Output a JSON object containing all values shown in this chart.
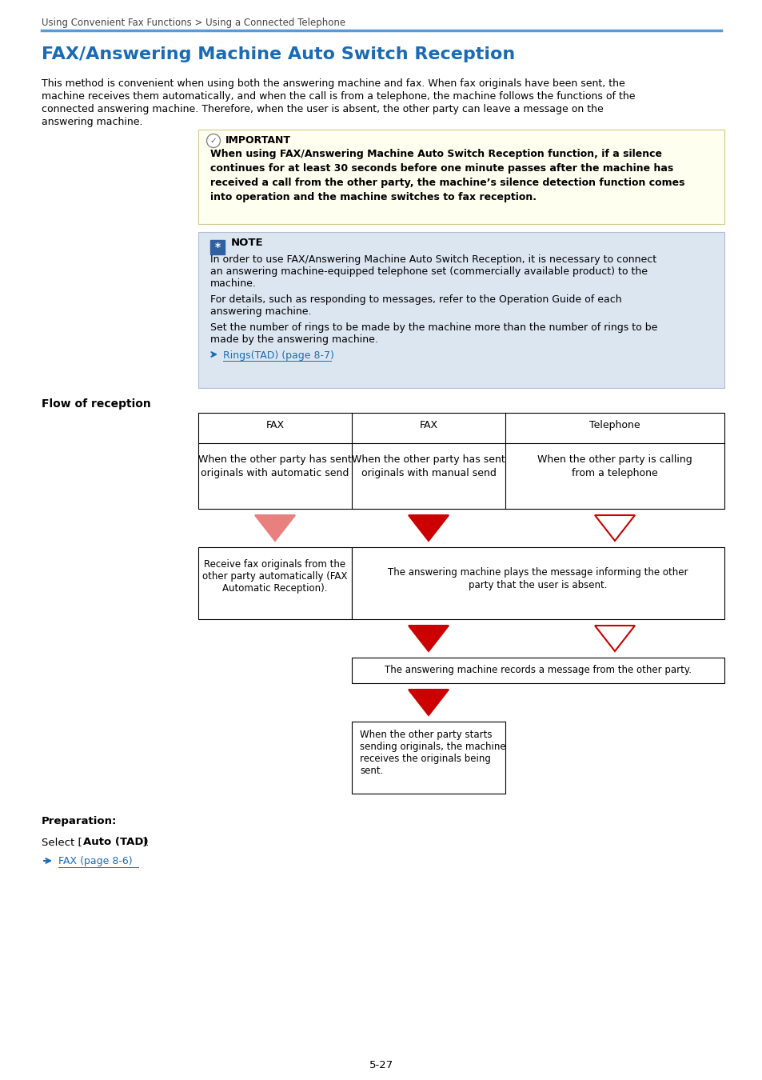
{
  "breadcrumb": "Using Convenient Fax Functions > Using a Connected Telephone",
  "title": "FAX/Answering Machine Auto Switch Reception",
  "intro_text": "This method is convenient when using both the answering machine and fax. When fax originals have been sent, the\nmachine receives them automatically, and when the call is from a telephone, the machine follows the functions of the\nconnected answering machine. Therefore, when the user is absent, the other party can leave a message on the\nanswering machine.",
  "important_title": "IMPORTANT",
  "important_text": "When using FAX/Answering Machine Auto Switch Reception function, if a silence\ncontinues for at least 30 seconds before one minute passes after the machine has\nreceived a call from the other party, the machine’s silence detection function comes\ninto operation and the machine switches to fax reception.",
  "note_title": "NOTE",
  "note_text1": "In order to use FAX/Answering Machine Auto Switch Reception, it is necessary to connect\nan answering machine-equipped telephone set (commercially available product) to the\nmachine.",
  "note_text2": "For details, such as responding to messages, refer to the Operation Guide of each\nanswering machine.",
  "note_text3": "Set the number of rings to be made by the machine more than the number of rings to be\nmade by the answering machine.",
  "note_link": "Rings(TAD) (page 8-7)",
  "flow_title": "Flow of reception",
  "table_headers": [
    "FAX",
    "FAX",
    "Telephone"
  ],
  "table_row1": [
    "When the other party has sent\noriginals with automatic send",
    "When the other party has sent\noriginals with manual send",
    "When the other party is calling\nfrom a telephone"
  ],
  "box1_text": "Receive fax originals from the\nother party automatically (FAX\nAutomatic Reception).",
  "box2_text": "The answering machine plays the message informing the other\nparty that the user is absent.",
  "box3_text": "The answering machine records a message from the other party.",
  "box4_text": "When the other party starts\nsending originals, the machine\nreceives the originals being\nsent.",
  "prep_title": "Preparation:",
  "prep_link": "FAX (page 8-6)",
  "page_num": "5-27",
  "title_color": "#1a6bb5",
  "link_color": "#1a6bb5",
  "important_bg": "#fffff0",
  "note_bg": "#dce6f1",
  "header_line_color": "#5b9bd5",
  "breadcrumb_color": "#444444",
  "arrow1_color": "#e88080",
  "arrow2_color": "#cc0000",
  "arrow_outline_color": "#cc0000"
}
